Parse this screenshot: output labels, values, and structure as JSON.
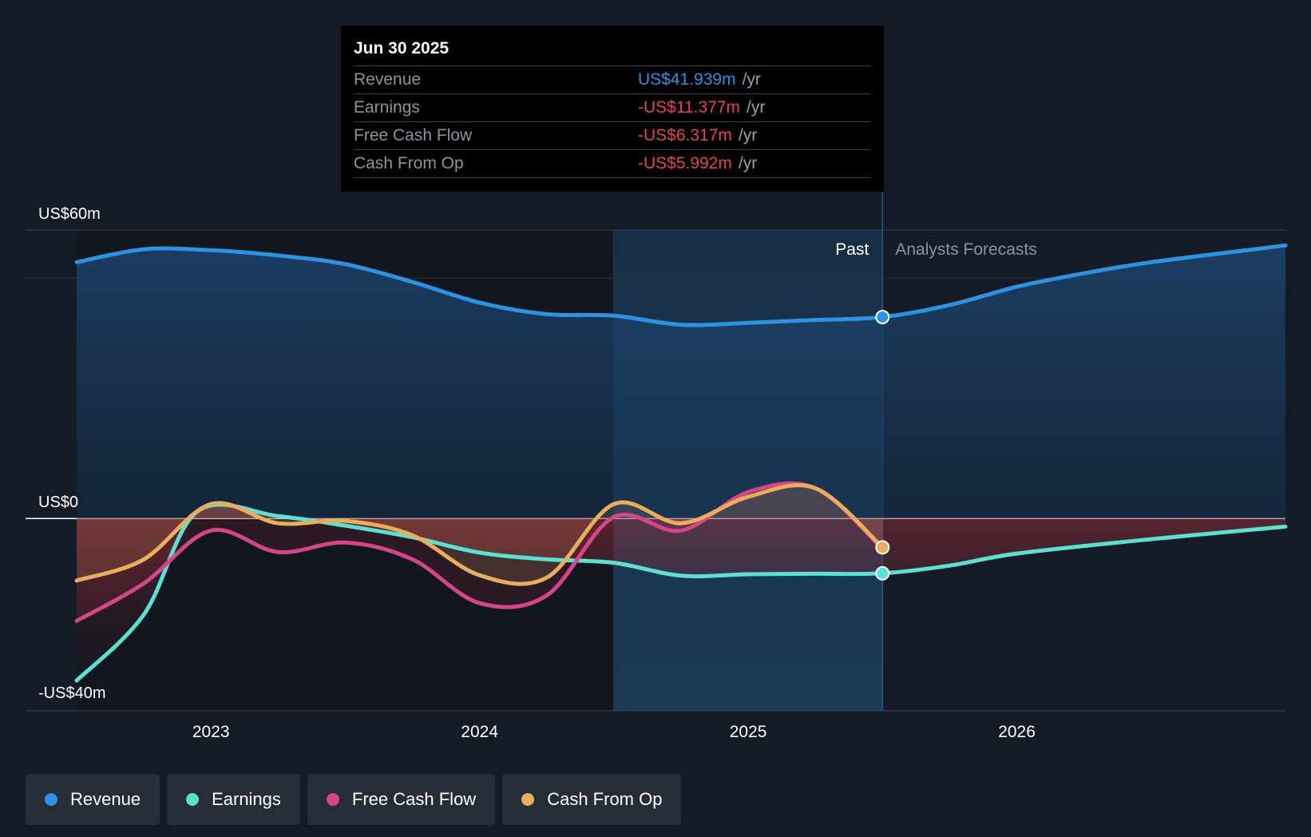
{
  "tooltip": {
    "date": "Jun 30 2025",
    "rows": [
      {
        "label": "Revenue",
        "value": "US$41.939m",
        "unit": "/yr",
        "color": "#2e92e2"
      },
      {
        "label": "Earnings",
        "value": "-US$11.377m",
        "unit": "/yr",
        "color": "#e64553"
      },
      {
        "label": "Free Cash Flow",
        "value": "-US$6.317m",
        "unit": "/yr",
        "color": "#e64553"
      },
      {
        "label": "Cash From Op",
        "value": "-US$5.992m",
        "unit": "/yr",
        "color": "#e64553"
      }
    ]
  },
  "legend": [
    {
      "label": "Revenue",
      "color": "#2e92e2"
    },
    {
      "label": "Earnings",
      "color": "#5ce0d2"
    },
    {
      "label": "Free Cash Flow",
      "color": "#d4468a"
    },
    {
      "label": "Cash From Op",
      "color": "#e8ae5c"
    }
  ],
  "chart_data": {
    "type": "line",
    "title": "",
    "y_unit": "US$m",
    "ylim": [
      -40,
      60
    ],
    "xlim": [
      2022.5,
      2027.0
    ],
    "y_ticks": [
      {
        "value": 60,
        "label": "US$60m"
      },
      {
        "value": 0,
        "label": "US$0"
      },
      {
        "value": -40,
        "label": "-US$40m"
      }
    ],
    "x_ticks": [
      {
        "value": 2023,
        "label": "2023"
      },
      {
        "value": 2024,
        "label": "2024"
      },
      {
        "value": 2025,
        "label": "2025"
      },
      {
        "value": 2026,
        "label": "2026"
      }
    ],
    "past_label": "Past",
    "forecast_label": "Analysts Forecasts",
    "highlight_start": 2024.5,
    "present_x": 2025.5,
    "series": [
      {
        "name": "Revenue",
        "color": "#2e92e2",
        "past": [
          [
            2022.5,
            53.3
          ],
          [
            2022.75,
            56.0
          ],
          [
            2023.0,
            55.8
          ],
          [
            2023.25,
            54.7
          ],
          [
            2023.5,
            52.9
          ],
          [
            2023.75,
            49.2
          ],
          [
            2024.0,
            44.9
          ],
          [
            2024.25,
            42.5
          ],
          [
            2024.5,
            42.2
          ],
          [
            2024.75,
            40.3
          ],
          [
            2025.0,
            40.7
          ],
          [
            2025.25,
            41.3
          ],
          [
            2025.5,
            41.9
          ]
        ],
        "forecast": [
          [
            2025.5,
            41.9
          ],
          [
            2025.75,
            44.4
          ],
          [
            2026.0,
            48.2
          ],
          [
            2026.25,
            51.0
          ],
          [
            2026.5,
            53.3
          ],
          [
            2027.0,
            56.8
          ]
        ]
      },
      {
        "name": "Earnings",
        "color": "#5ce0d2",
        "past": [
          [
            2022.5,
            -33.7
          ],
          [
            2022.75,
            -20.0
          ],
          [
            2022.95,
            1.5
          ],
          [
            2023.25,
            0.5
          ],
          [
            2023.5,
            -1.5
          ],
          [
            2023.75,
            -3.9
          ],
          [
            2024.0,
            -7.1
          ],
          [
            2024.25,
            -8.5
          ],
          [
            2024.5,
            -9.2
          ],
          [
            2024.75,
            -11.9
          ],
          [
            2025.0,
            -11.6
          ],
          [
            2025.25,
            -11.5
          ],
          [
            2025.5,
            -11.4
          ]
        ],
        "forecast": [
          [
            2025.5,
            -11.4
          ],
          [
            2025.75,
            -9.8
          ],
          [
            2026.0,
            -7.3
          ],
          [
            2026.5,
            -4.3
          ],
          [
            2027.0,
            -1.7
          ]
        ]
      },
      {
        "name": "Free Cash Flow",
        "color": "#d4468a",
        "past": [
          [
            2022.5,
            -21.3
          ],
          [
            2022.75,
            -13.5
          ],
          [
            2023.0,
            -2.5
          ],
          [
            2023.25,
            -7.0
          ],
          [
            2023.5,
            -5.0
          ],
          [
            2023.75,
            -8.5
          ],
          [
            2024.0,
            -17.6
          ],
          [
            2024.25,
            -16.0
          ],
          [
            2024.5,
            0.3
          ],
          [
            2024.75,
            -2.5
          ],
          [
            2025.0,
            5.5
          ],
          [
            2025.25,
            6.3
          ],
          [
            2025.5,
            -6.3
          ]
        ],
        "forecast": []
      },
      {
        "name": "Cash From Op",
        "color": "#e8ae5c",
        "past": [
          [
            2022.5,
            -12.9
          ],
          [
            2022.75,
            -8.5
          ],
          [
            2023.0,
            3.0
          ],
          [
            2023.25,
            -1.0
          ],
          [
            2023.5,
            -0.5
          ],
          [
            2023.75,
            -3.5
          ],
          [
            2024.0,
            -11.8
          ],
          [
            2024.25,
            -12.3
          ],
          [
            2024.5,
            3.0
          ],
          [
            2024.75,
            -1.0
          ],
          [
            2025.0,
            4.5
          ],
          [
            2025.25,
            6.3
          ],
          [
            2025.5,
            -6.0
          ]
        ],
        "forecast": []
      }
    ]
  }
}
